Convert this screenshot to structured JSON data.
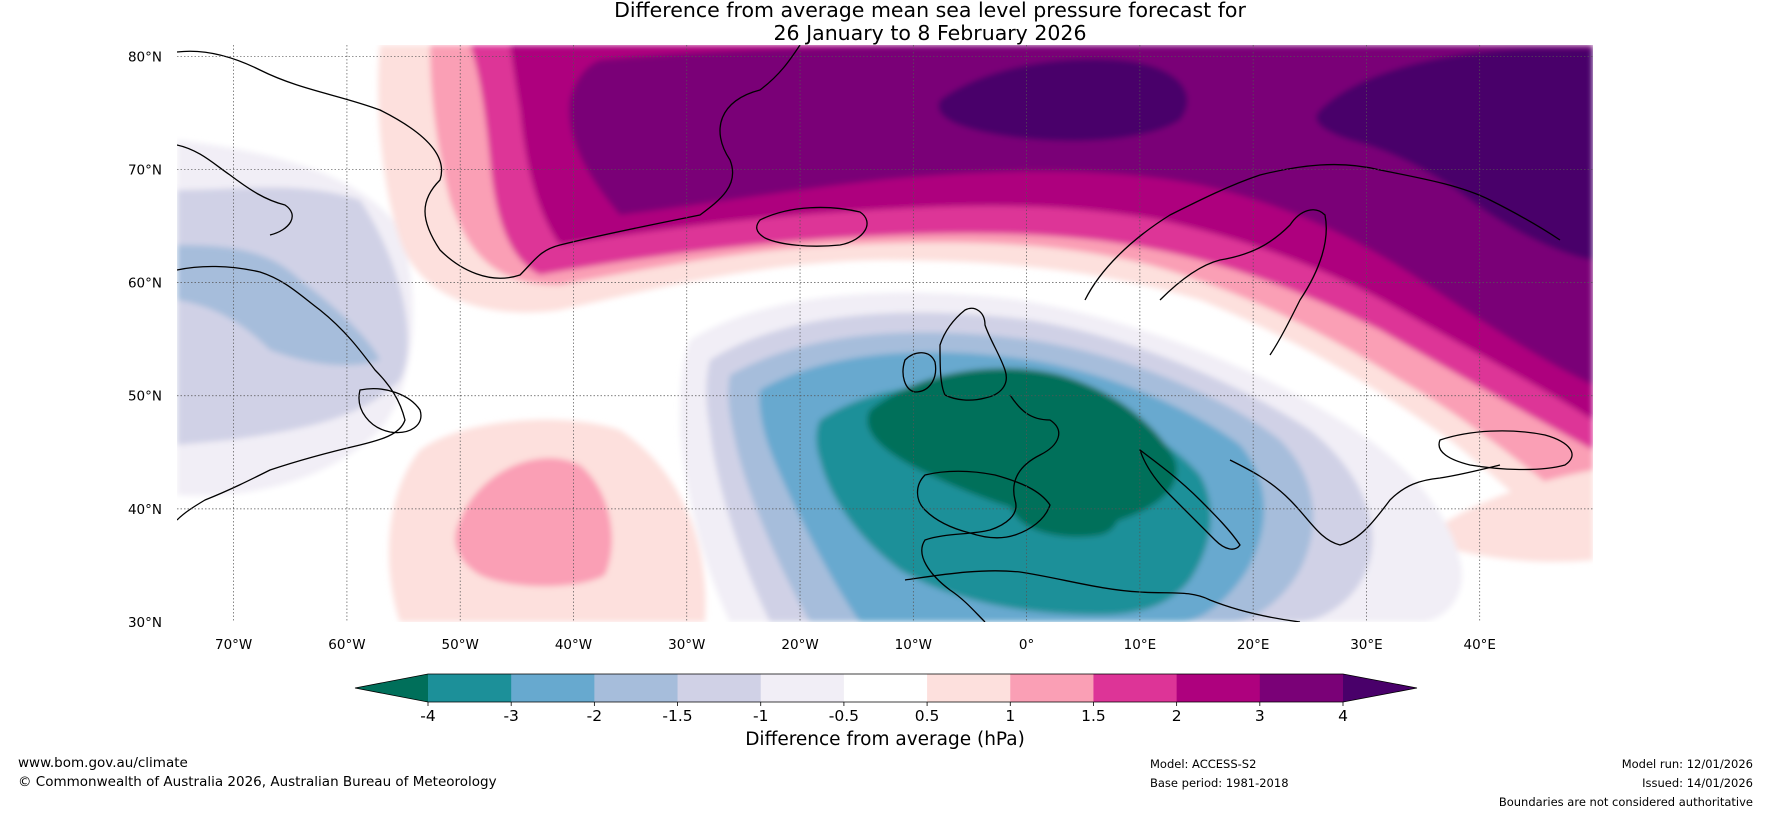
{
  "title": {
    "line1": "Difference from average mean sea level pressure forecast for",
    "line2": "26 January to 8 February 2026"
  },
  "map": {
    "lat_labels": [
      "80°N",
      "70°N",
      "60°N",
      "50°N",
      "40°N",
      "30°N"
    ],
    "lon_labels": [
      "70°W",
      "60°W",
      "50°W",
      "40°W",
      "30°W",
      "20°W",
      "10°W",
      "0°",
      "10°E",
      "20°E",
      "30°E",
      "40°E"
    ],
    "lat_range": [
      30,
      81
    ],
    "lon_range": [
      -75,
      50
    ]
  },
  "colorbar": {
    "label": "Difference from average (hPa)",
    "ticks": [
      "-4",
      "-3",
      "-2",
      "-1.5",
      "-1",
      "-0.5",
      "0.5",
      "1",
      "1.5",
      "2",
      "3",
      "4"
    ],
    "colors": [
      "#006f5a",
      "#1c9099",
      "#67a9cf",
      "#a6bddb",
      "#d0d1e6",
      "#f1eef6",
      "#ffffff",
      "#fde0dd",
      "#fa9fb5",
      "#dd3497",
      "#ae017e",
      "#7a0177",
      "#49006a"
    ]
  },
  "footer": {
    "website": "www.bom.gov.au/climate",
    "copyright": "© Commonwealth of Australia 2026, Australian Bureau of Meteorology",
    "model": "Model: ACCESS-S2",
    "base_period": "Base period: 1981-2018",
    "model_run": "Model run: 12/01/2026",
    "issued": "Issued: 14/01/2026",
    "disclaimer": "Boundaries are not considered authoritative"
  }
}
